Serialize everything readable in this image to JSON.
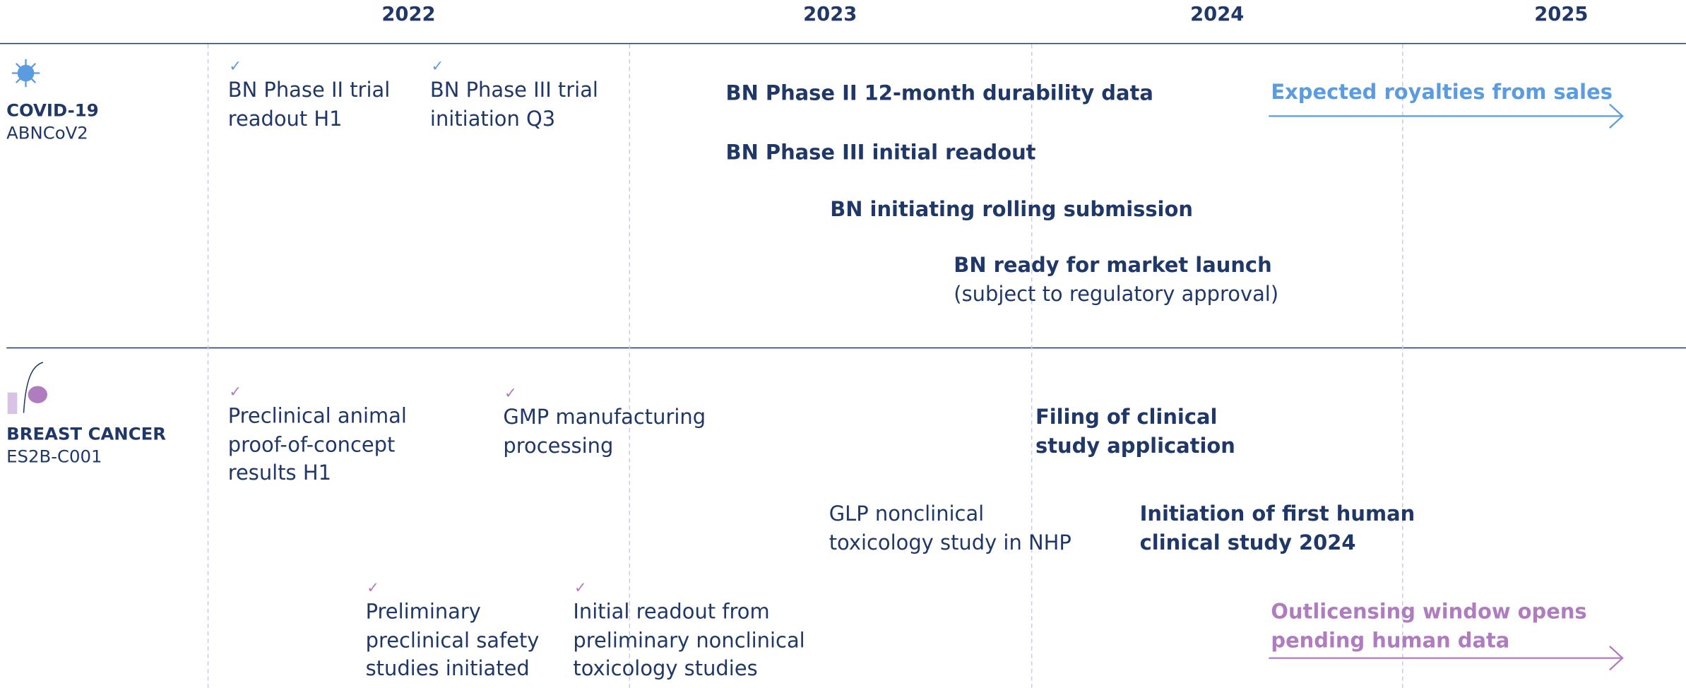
{
  "years": [
    "2022",
    "2023",
    "2024",
    "2025"
  ],
  "rows": [
    {
      "label": "COVID-19",
      "sublabel": "ABNCoV2",
      "events": [
        {
          "lines": [
            "BN Phase II trial",
            "readout H1"
          ]
        },
        {
          "lines": [
            "BN Phase III trial",
            "initiation Q3"
          ]
        },
        {
          "lines": [
            "BN Phase II 12-month durability data"
          ]
        },
        {
          "lines": [
            "BN Phase III initial readout"
          ]
        },
        {
          "lines": [
            "BN initiating rolling submission"
          ]
        },
        {
          "lines": [
            "BN ready for market launch",
            "(subject to regulatory approval)"
          ]
        },
        {
          "lines": [
            "Expected royalties from sales"
          ]
        }
      ]
    },
    {
      "label": "BREAST CANCER",
      "sublabel": "ES2B-C001",
      "events": [
        {
          "lines": [
            "Preclinical animal",
            "proof-of-concept",
            "results H1"
          ]
        },
        {
          "lines": [
            "GMP manufacturing",
            "processing"
          ]
        },
        {
          "lines": [
            "Filing of clinical",
            "study application"
          ]
        },
        {
          "lines": [
            "GLP nonclinical",
            "toxicology study in NHP"
          ]
        },
        {
          "lines": [
            "Initiation of first human",
            "clinical study 2024"
          ]
        },
        {
          "lines": [
            "Preliminary",
            "preclinical safety",
            "studies initiated"
          ]
        },
        {
          "lines": [
            "Initial readout from",
            "preliminary nonclinical",
            "toxicology studies"
          ]
        },
        {
          "lines": [
            "Outlicensing window opens",
            "pending human data"
          ]
        }
      ]
    }
  ]
}
